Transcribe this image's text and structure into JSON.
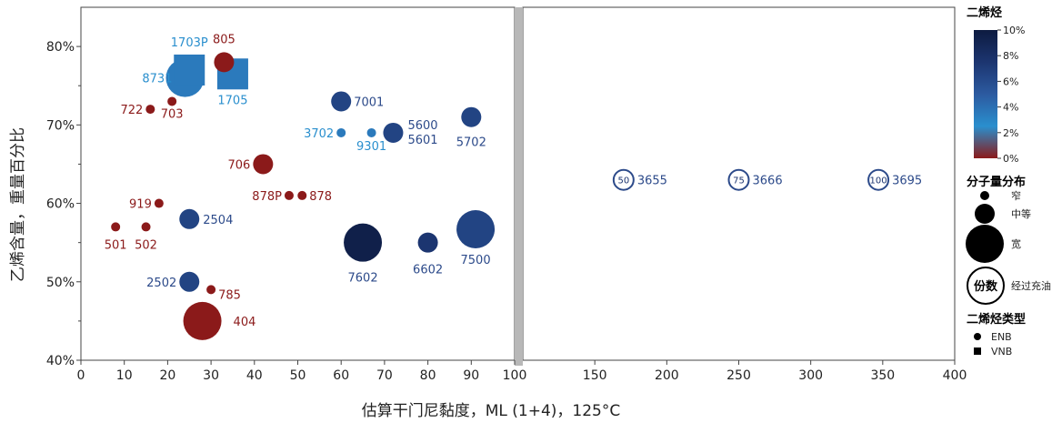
{
  "chart_data": {
    "type": "scatter",
    "title": "",
    "xlabel": "估算干门尼黏度，ML (1+4)，125°C",
    "ylabel": "乙烯含量，重量百分比",
    "ylim": [
      0.4,
      0.85
    ],
    "yticks": [
      "40%",
      "50%",
      "60%",
      "70%",
      "80%"
    ],
    "yticks_values": [
      0.4,
      0.5,
      0.6,
      0.7,
      0.8
    ],
    "panels": [
      {
        "xlim": [
          0,
          100
        ],
        "xticks": [
          0,
          10,
          20,
          30,
          40,
          50,
          60,
          70,
          80,
          90
        ]
      },
      {
        "xlim": [
          100,
          400
        ],
        "xticks": [
          100,
          150,
          200,
          250,
          300,
          350,
          400
        ]
      }
    ],
    "points": [
      {
        "label": "1703P",
        "x": 25,
        "y": 0.77,
        "diene_pct": 3.5,
        "size": "medium",
        "type": "VNB"
      },
      {
        "label": "1705",
        "x": 35,
        "y": 0.765,
        "diene_pct": 3.5,
        "size": "medium",
        "type": "VNB"
      },
      {
        "label": "8731",
        "x": 24,
        "y": 0.76,
        "diene_pct": 3.5,
        "size": "wide",
        "type": "ENB"
      },
      {
        "label": "805",
        "x": 33,
        "y": 0.78,
        "diene_pct": 0,
        "size": "medium",
        "type": "ENB"
      },
      {
        "label": "722",
        "x": 16,
        "y": 0.72,
        "diene_pct": 0,
        "size": "narrow",
        "type": "ENB"
      },
      {
        "label": "703",
        "x": 21,
        "y": 0.73,
        "diene_pct": 0,
        "size": "narrow",
        "type": "ENB"
      },
      {
        "label": "7001",
        "x": 60,
        "y": 0.73,
        "diene_pct": 6.5,
        "size": "medium",
        "type": "ENB"
      },
      {
        "label": "3702",
        "x": 60,
        "y": 0.69,
        "diene_pct": 3.5,
        "size": "narrow",
        "type": "ENB"
      },
      {
        "label": "9301",
        "x": 67,
        "y": 0.69,
        "diene_pct": 3.5,
        "size": "narrow",
        "type": "ENB"
      },
      {
        "label": "5600\n5601",
        "x": 72,
        "y": 0.69,
        "diene_pct": 6.5,
        "size": "medium",
        "type": "ENB"
      },
      {
        "label": "5702",
        "x": 90,
        "y": 0.71,
        "diene_pct": 6.5,
        "size": "medium",
        "type": "ENB"
      },
      {
        "label": "706",
        "x": 42,
        "y": 0.65,
        "diene_pct": 0,
        "size": "medium",
        "type": "ENB"
      },
      {
        "label": "878P",
        "x": 48,
        "y": 0.61,
        "diene_pct": 0,
        "size": "narrow",
        "type": "ENB"
      },
      {
        "label": "878",
        "x": 51,
        "y": 0.61,
        "diene_pct": 0,
        "size": "narrow",
        "type": "ENB"
      },
      {
        "label": "919",
        "x": 18,
        "y": 0.6,
        "diene_pct": 0,
        "size": "narrow",
        "type": "ENB"
      },
      {
        "label": "2504",
        "x": 25,
        "y": 0.58,
        "diene_pct": 6.5,
        "size": "medium",
        "type": "ENB"
      },
      {
        "label": "501",
        "x": 8,
        "y": 0.57,
        "diene_pct": 0,
        "size": "narrow",
        "type": "ENB"
      },
      {
        "label": "502",
        "x": 15,
        "y": 0.57,
        "diene_pct": 0,
        "size": "narrow",
        "type": "ENB"
      },
      {
        "label": "7602",
        "x": 65,
        "y": 0.55,
        "diene_pct": 9.5,
        "size": "wide",
        "type": "ENB"
      },
      {
        "label": "6602",
        "x": 80,
        "y": 0.55,
        "diene_pct": 7.5,
        "size": "medium",
        "type": "ENB"
      },
      {
        "label": "7500",
        "x": 91,
        "y": 0.567,
        "diene_pct": 6.5,
        "size": "wide",
        "type": "ENB"
      },
      {
        "label": "2502",
        "x": 25,
        "y": 0.5,
        "diene_pct": 6.5,
        "size": "medium",
        "type": "ENB"
      },
      {
        "label": "785",
        "x": 30,
        "y": 0.49,
        "diene_pct": 0,
        "size": "narrow",
        "type": "ENB"
      },
      {
        "label": "404",
        "x": 28,
        "y": 0.45,
        "diene_pct": 0,
        "size": "wide",
        "type": "ENB"
      }
    ],
    "oil_extended_points": [
      {
        "label": "3655",
        "x": 170,
        "y": 0.63,
        "parts": "50"
      },
      {
        "label": "3666",
        "x": 250,
        "y": 0.63,
        "parts": "75"
      },
      {
        "label": "3695",
        "x": 347,
        "y": 0.63,
        "parts": "100"
      }
    ],
    "label_colors": {
      "red": "#8b1a1a",
      "light_blue": "#2a8fce",
      "dark_blue": "#2c4a8a"
    },
    "legend": {
      "placement": "right",
      "colorbar_title": "二烯烃",
      "colorbar_ticks": [
        "0%",
        "2%",
        "4%",
        "6%",
        "8%",
        "10%"
      ],
      "colorbar_ticks_values": [
        0,
        2,
        4,
        6,
        8,
        10
      ],
      "colorbar_colors": [
        "#8b1a1a",
        "#2a8fce",
        "#2c5aa0",
        "#1c3570",
        "#0d1b40"
      ],
      "size_title": "分子量分布",
      "size_items": [
        {
          "label": "窄",
          "size": "narrow"
        },
        {
          "label": "中等",
          "size": "medium"
        },
        {
          "label": "宽",
          "size": "wide"
        }
      ],
      "oil_marker_text": "份数",
      "oil_label": "经过充油",
      "type_title": "二烯烃类型",
      "type_items": [
        {
          "label": "ENB",
          "marker": "circle"
        },
        {
          "label": "VNB",
          "marker": "square"
        }
      ]
    }
  }
}
